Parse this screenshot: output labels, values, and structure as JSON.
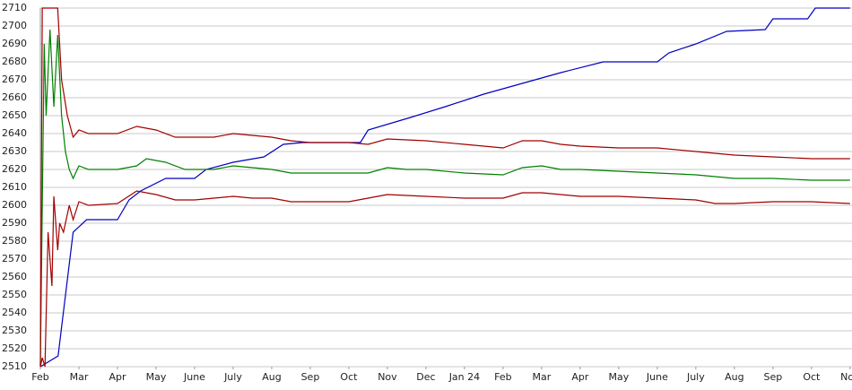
{
  "chart_data": {
    "type": "line",
    "xlim": [
      0,
      21.05
    ],
    "xticks": [
      {
        "value": 0,
        "label": "Feb"
      },
      {
        "value": 1,
        "label": "Mar"
      },
      {
        "value": 2,
        "label": "Apr"
      },
      {
        "value": 3,
        "label": "May"
      },
      {
        "value": 4,
        "label": "June"
      },
      {
        "value": 5,
        "label": "July"
      },
      {
        "value": 6,
        "label": "Aug"
      },
      {
        "value": 7,
        "label": "Sep"
      },
      {
        "value": 8,
        "label": "Oct"
      },
      {
        "value": 9,
        "label": "Nov"
      },
      {
        "value": 10,
        "label": "Dec"
      },
      {
        "value": 11,
        "label": "Jan 24"
      },
      {
        "value": 12,
        "label": "Feb"
      },
      {
        "value": 13,
        "label": "Mar"
      },
      {
        "value": 14,
        "label": "Apr"
      },
      {
        "value": 15,
        "label": "May"
      },
      {
        "value": 16,
        "label": "June"
      },
      {
        "value": 17,
        "label": "July"
      },
      {
        "value": 18,
        "label": "Aug"
      },
      {
        "value": 19,
        "label": "Sep"
      },
      {
        "value": 20,
        "label": "Oct"
      },
      {
        "value": 21,
        "label": "Nov"
      }
    ],
    "ylim": [
      2510,
      2710
    ],
    "yticks": [
      2510,
      2520,
      2530,
      2540,
      2550,
      2560,
      2570,
      2580,
      2590,
      2600,
      2610,
      2620,
      2630,
      2640,
      2650,
      2660,
      2670,
      2680,
      2690,
      2700,
      2710
    ],
    "grid": true,
    "series": [
      {
        "color": "#0000c0",
        "x": [
          0,
          0.46,
          0.85,
          1.2,
          2.0,
          2.3,
          2.6,
          3.25,
          4.0,
          4.3,
          5.0,
          5.8,
          6.3,
          6.8,
          8.3,
          8.5,
          9.6,
          10.5,
          11.5,
          12.5,
          13.5,
          14.6,
          16.0,
          16.3,
          17.0,
          17.8,
          18.8,
          19.0,
          19.9,
          20.1,
          21.0
        ],
        "values": [
          2510,
          2516,
          2585,
          2592,
          2592,
          2603,
          2608,
          2615,
          2615,
          2620,
          2624,
          2627,
          2634,
          2635,
          2635,
          2642,
          2649,
          2655,
          2662,
          2668,
          2674,
          2680,
          2680,
          2685,
          2690,
          2697,
          2698,
          2704,
          2704,
          2710,
          2710
        ]
      },
      {
        "color": "#008000",
        "x": [
          0,
          0.1,
          0.15,
          0.25,
          0.35,
          0.45,
          0.55,
          0.65,
          0.75,
          0.85,
          1.0,
          1.25,
          1.5,
          2,
          2.5,
          2.75,
          3.25,
          3.75,
          4.5,
          5,
          5.5,
          6,
          6.5,
          7,
          8,
          8.5,
          9,
          9.5,
          10,
          11,
          12,
          12.5,
          13,
          13.5,
          14,
          15,
          16,
          17,
          17.5,
          18,
          19,
          20,
          21
        ],
        "values": [
          2510,
          2690,
          2650,
          2698,
          2655,
          2695,
          2650,
          2630,
          2620,
          2615,
          2622,
          2620,
          2620,
          2620,
          2622,
          2626,
          2624,
          2620,
          2620,
          2622,
          2621,
          2620,
          2618,
          2618,
          2618,
          2618,
          2621,
          2620,
          2620,
          2618,
          2617,
          2621,
          2622,
          2620,
          2620,
          2619,
          2618,
          2617,
          2616,
          2615,
          2615,
          2614,
          2614
        ]
      },
      {
        "color": "#a00000",
        "x": [
          0,
          0.05,
          0.45,
          0.55,
          0.7,
          0.85,
          1.0,
          1.25,
          2,
          2.5,
          3,
          3.5,
          4.5,
          5,
          6,
          6.5,
          7,
          8,
          8.5,
          9,
          10,
          11,
          12,
          12.5,
          13,
          13.5,
          14,
          15,
          16,
          17,
          18,
          19,
          20,
          21
        ],
        "values": [
          2510,
          2710,
          2710,
          2670,
          2650,
          2638,
          2642,
          2640,
          2640,
          2644,
          2642,
          2638,
          2638,
          2640,
          2638,
          2636,
          2635,
          2635,
          2634,
          2637,
          2636,
          2634,
          2632,
          2636,
          2636,
          2634,
          2633,
          2632,
          2632,
          2630,
          2628,
          2627,
          2626,
          2626
        ]
      },
      {
        "color": "#a00000",
        "x": [
          0,
          0.05,
          0.12,
          0.2,
          0.3,
          0.35,
          0.45,
          0.5,
          0.6,
          0.75,
          0.85,
          1.0,
          1.25,
          2,
          2.5,
          3,
          3.5,
          4,
          5,
          5.5,
          6,
          6.5,
          7,
          8,
          9,
          10,
          11,
          12,
          12.5,
          13,
          14,
          15,
          16,
          17,
          17.5,
          18,
          19,
          20,
          21
        ],
        "values": [
          2510,
          2515,
          2510,
          2585,
          2555,
          2605,
          2575,
          2590,
          2585,
          2600,
          2592,
          2602,
          2600,
          2601,
          2608,
          2606,
          2603,
          2603,
          2605,
          2604,
          2604,
          2602,
          2602,
          2602,
          2606,
          2605,
          2604,
          2604,
          2607,
          2607,
          2605,
          2605,
          2604,
          2603,
          2601,
          2601,
          2602,
          2602,
          2601
        ]
      }
    ]
  }
}
